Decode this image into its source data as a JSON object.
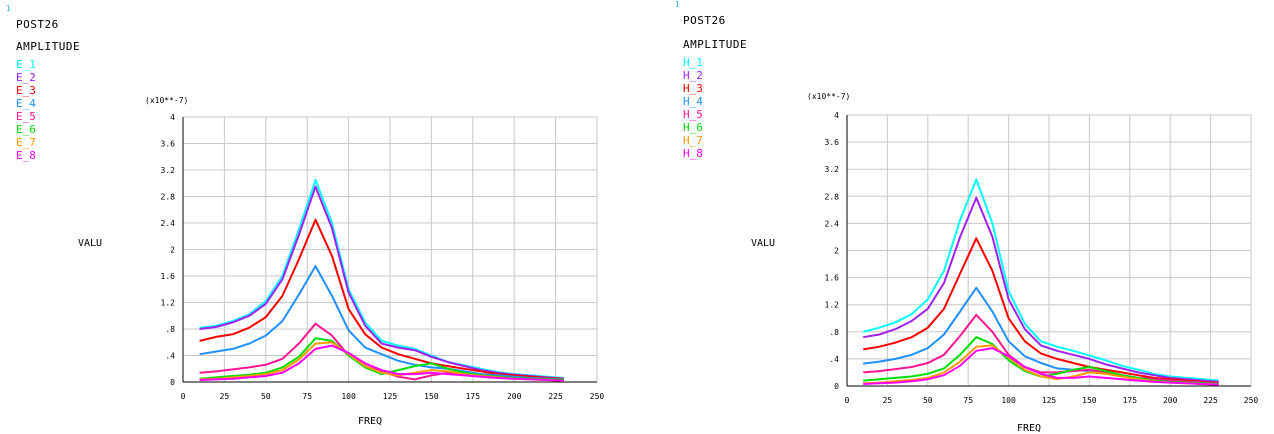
{
  "panels": [
    {
      "id": "left",
      "corner_mark": "1",
      "header1": "POST26",
      "header2": "AMPLITUDE",
      "chart_data": {
        "type": "line",
        "xlabel": "FREQ",
        "ylabel": "VALU",
        "yscale_label": "(x10**-7)",
        "xlim": [
          0,
          250
        ],
        "ylim": [
          0,
          4
        ],
        "xticks": [
          "0",
          "25",
          "50",
          "75",
          "100",
          "125",
          "150",
          "175",
          "200",
          "225",
          "250"
        ],
        "yticks": [
          "0",
          ".4",
          ".8",
          "1.2",
          "1.6",
          "2",
          "2.4",
          "2.8",
          "3.2",
          "3.6",
          "4"
        ],
        "grid": true,
        "legend_position": "top-left",
        "x": [
          10,
          20,
          30,
          40,
          50,
          60,
          70,
          80,
          90,
          100,
          110,
          120,
          130,
          140,
          150,
          160,
          170,
          180,
          190,
          200,
          210,
          220,
          230
        ],
        "series": [
          {
            "name": "E_1",
            "color": "#00ffff",
            "values": [
              0.82,
              0.85,
              0.92,
              1.02,
              1.22,
              1.6,
              2.3,
              3.05,
              2.4,
              1.4,
              0.9,
              0.62,
              0.55,
              0.5,
              0.4,
              0.3,
              0.25,
              0.2,
              0.15,
              0.12,
              0.1,
              0.08,
              0.06
            ]
          },
          {
            "name": "E_2",
            "color": "#a020f0",
            "values": [
              0.8,
              0.83,
              0.9,
              1.0,
              1.18,
              1.55,
              2.22,
              2.95,
              2.32,
              1.35,
              0.85,
              0.58,
              0.52,
              0.48,
              0.38,
              0.3,
              0.24,
              0.18,
              0.14,
              0.11,
              0.09,
              0.07,
              0.05
            ]
          },
          {
            "name": "E_3",
            "color": "#ff0000",
            "values": [
              0.62,
              0.68,
              0.72,
              0.82,
              0.98,
              1.3,
              1.85,
              2.45,
              1.9,
              1.1,
              0.72,
              0.52,
              0.42,
              0.35,
              0.28,
              0.24,
              0.2,
              0.16,
              0.12,
              0.1,
              0.08,
              0.06,
              0.05
            ]
          },
          {
            "name": "E_4",
            "color": "#1e90ff",
            "values": [
              0.42,
              0.46,
              0.5,
              0.58,
              0.7,
              0.92,
              1.32,
              1.75,
              1.3,
              0.78,
              0.52,
              0.42,
              0.32,
              0.26,
              0.22,
              0.2,
              0.16,
              0.12,
              0.1,
              0.08,
              0.06,
              0.05,
              0.04
            ]
          },
          {
            "name": "E_5",
            "color": "#ff1493",
            "values": [
              0.14,
              0.16,
              0.19,
              0.22,
              0.26,
              0.35,
              0.58,
              0.88,
              0.7,
              0.4,
              0.24,
              0.16,
              0.08,
              0.04,
              0.1,
              0.14,
              0.12,
              0.1,
              0.08,
              0.06,
              0.05,
              0.04,
              0.03
            ]
          },
          {
            "name": "E_6",
            "color": "#00e000",
            "values": [
              0.05,
              0.07,
              0.09,
              0.11,
              0.14,
              0.22,
              0.38,
              0.66,
              0.62,
              0.4,
              0.22,
              0.12,
              0.18,
              0.24,
              0.28,
              0.2,
              0.14,
              0.1,
              0.08,
              0.06,
              0.05,
              0.04,
              0.03
            ]
          },
          {
            "name": "E_7",
            "color": "#ff9900",
            "values": [
              0.04,
              0.05,
              0.07,
              0.09,
              0.12,
              0.18,
              0.34,
              0.58,
              0.6,
              0.42,
              0.24,
              0.14,
              0.1,
              0.14,
              0.18,
              0.16,
              0.12,
              0.09,
              0.07,
              0.05,
              0.04,
              0.03,
              0.02
            ]
          },
          {
            "name": "E_8",
            "color": "#ff00ff",
            "values": [
              0.03,
              0.04,
              0.05,
              0.07,
              0.09,
              0.14,
              0.28,
              0.5,
              0.55,
              0.44,
              0.28,
              0.18,
              0.12,
              0.12,
              0.14,
              0.12,
              0.1,
              0.08,
              0.06,
              0.05,
              0.04,
              0.03,
              0.02
            ]
          }
        ]
      }
    },
    {
      "id": "right",
      "corner_mark": "1",
      "header1": "POST26",
      "header2": "AMPLITUDE",
      "chart_data": {
        "type": "line",
        "xlabel": "FREQ",
        "ylabel": "VALU",
        "yscale_label": "(x10**-7)",
        "xlim": [
          0,
          250
        ],
        "ylim": [
          0,
          4
        ],
        "xticks": [
          "0",
          "25",
          "50",
          "75",
          "100",
          "125",
          "150",
          "175",
          "200",
          "225",
          "250"
        ],
        "yticks": [
          "0",
          ".4",
          ".8",
          "1.2",
          "1.6",
          "2",
          "2.4",
          "2.8",
          "3.2",
          "3.6",
          "4"
        ],
        "grid": true,
        "legend_position": "top-left",
        "x": [
          10,
          20,
          30,
          40,
          50,
          60,
          70,
          80,
          90,
          100,
          110,
          120,
          130,
          140,
          150,
          160,
          170,
          180,
          190,
          200,
          210,
          220,
          230
        ],
        "series": [
          {
            "name": "H_1",
            "color": "#00ffff",
            "values": [
              0.8,
              0.86,
              0.94,
              1.06,
              1.28,
              1.7,
              2.45,
              3.05,
              2.4,
              1.4,
              0.92,
              0.66,
              0.58,
              0.52,
              0.45,
              0.38,
              0.3,
              0.24,
              0.18,
              0.14,
              0.12,
              0.1,
              0.08
            ]
          },
          {
            "name": "H_2",
            "color": "#a020f0",
            "values": [
              0.72,
              0.76,
              0.84,
              0.96,
              1.14,
              1.52,
              2.2,
              2.78,
              2.2,
              1.28,
              0.84,
              0.6,
              0.52,
              0.46,
              0.4,
              0.32,
              0.26,
              0.2,
              0.16,
              0.12,
              0.1,
              0.08,
              0.06
            ]
          },
          {
            "name": "H_3",
            "color": "#ff0000",
            "values": [
              0.54,
              0.58,
              0.64,
              0.72,
              0.86,
              1.14,
              1.66,
              2.18,
              1.7,
              1.0,
              0.66,
              0.48,
              0.4,
              0.34,
              0.28,
              0.24,
              0.2,
              0.16,
              0.12,
              0.1,
              0.08,
              0.06,
              0.05
            ]
          },
          {
            "name": "H_4",
            "color": "#1e90ff",
            "values": [
              0.33,
              0.36,
              0.4,
              0.46,
              0.56,
              0.76,
              1.1,
              1.45,
              1.1,
              0.66,
              0.44,
              0.34,
              0.26,
              0.24,
              0.22,
              0.2,
              0.16,
              0.12,
              0.1,
              0.08,
              0.06,
              0.05,
              0.04
            ]
          },
          {
            "name": "H_5",
            "color": "#ff1493",
            "values": [
              0.2,
              0.22,
              0.25,
              0.28,
              0.34,
              0.46,
              0.74,
              1.05,
              0.8,
              0.46,
              0.28,
              0.2,
              0.2,
              0.22,
              0.24,
              0.2,
              0.16,
              0.12,
              0.1,
              0.08,
              0.06,
              0.05,
              0.04
            ]
          },
          {
            "name": "H_6",
            "color": "#00e000",
            "values": [
              0.08,
              0.1,
              0.12,
              0.14,
              0.18,
              0.26,
              0.46,
              0.72,
              0.62,
              0.38,
              0.22,
              0.14,
              0.18,
              0.24,
              0.28,
              0.22,
              0.16,
              0.12,
              0.08,
              0.06,
              0.05,
              0.04,
              0.03
            ]
          },
          {
            "name": "H_7",
            "color": "#ff9900",
            "values": [
              0.04,
              0.05,
              0.07,
              0.09,
              0.12,
              0.2,
              0.36,
              0.58,
              0.6,
              0.42,
              0.24,
              0.14,
              0.1,
              0.14,
              0.2,
              0.18,
              0.14,
              0.1,
              0.07,
              0.05,
              0.04,
              0.03,
              0.02
            ]
          },
          {
            "name": "H_8",
            "color": "#ff00ff",
            "values": [
              0.03,
              0.04,
              0.05,
              0.07,
              0.1,
              0.16,
              0.3,
              0.52,
              0.56,
              0.44,
              0.28,
              0.18,
              0.12,
              0.12,
              0.14,
              0.12,
              0.1,
              0.08,
              0.06,
              0.05,
              0.04,
              0.03,
              0.02
            ]
          }
        ]
      }
    }
  ]
}
